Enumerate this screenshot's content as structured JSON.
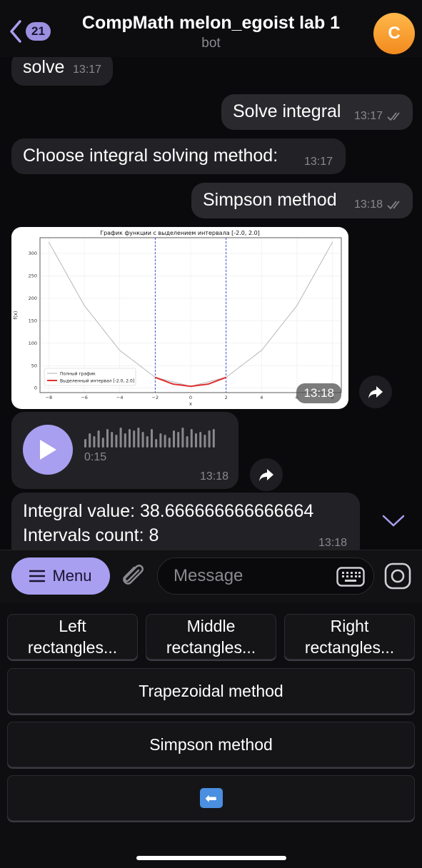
{
  "header": {
    "back_count": "21",
    "title": "CompMath melon_egoist lab 1",
    "subtitle": "bot",
    "avatar_letter": "C"
  },
  "messages": [
    {
      "dir": "in",
      "text": "solve",
      "time": "13:17"
    },
    {
      "dir": "out",
      "text": "Solve integral",
      "time": "13:17"
    },
    {
      "dir": "in",
      "text": "Choose integral solving method:",
      "time": "13:17"
    },
    {
      "dir": "out",
      "text": "Simpson method",
      "time": "13:18"
    }
  ],
  "image_message": {
    "time": "13:18",
    "chart_data": {
      "type": "line",
      "title": "График функции с выделением интервала [-2.0, 2.0]",
      "xlabel": "x",
      "ylabel": "f(x)",
      "xlim": [
        -8.5,
        8.5
      ],
      "ylim": [
        -10,
        335
      ],
      "xticks": [
        "-8",
        "-6",
        "-4",
        "-2",
        "0",
        "2",
        "4",
        "6",
        "8"
      ],
      "yticks": [
        "0",
        "50",
        "100",
        "150",
        "200",
        "250",
        "300"
      ],
      "legend": [
        "Полный график",
        "Выделенный интервал [-2.0, 2.0]"
      ],
      "legend_position": "lower-left",
      "full_range": [
        -8,
        8
      ],
      "interval": [
        -2,
        2
      ],
      "series": [
        {
          "name": "Полный график",
          "color": "#b0b0b0",
          "x": [
            -8,
            -6,
            -4,
            -2,
            0,
            2,
            4,
            6,
            8
          ],
          "y": [
            325,
            184,
            84,
            24,
            4,
            24,
            84,
            184,
            325
          ]
        },
        {
          "name": "Выделенный интервал [-2.0, 2.0]",
          "color": "#e03030",
          "x": [
            -2,
            -1,
            0,
            1,
            2
          ],
          "y": [
            24,
            9,
            4,
            9,
            24
          ]
        }
      ],
      "vlines": [
        -2,
        2
      ],
      "grid": true
    }
  },
  "voice": {
    "duration": "0:15",
    "time": "13:18"
  },
  "result": {
    "line1": "Integral value: 38.666666666666664",
    "line2": "Intervals count: 8",
    "time": "13:18"
  },
  "input": {
    "menu_label": "Menu",
    "placeholder": "Message"
  },
  "keyboard": {
    "row1": [
      "Left\nrectangles...",
      "Middle\nrectangles...",
      "Right\nrectangles..."
    ],
    "trapezoidal": "Trapezoidal method",
    "simpson": "Simpson method",
    "back": "⬅️"
  },
  "colors": {
    "accent": "#a89ff0",
    "bubble": "#222226"
  }
}
